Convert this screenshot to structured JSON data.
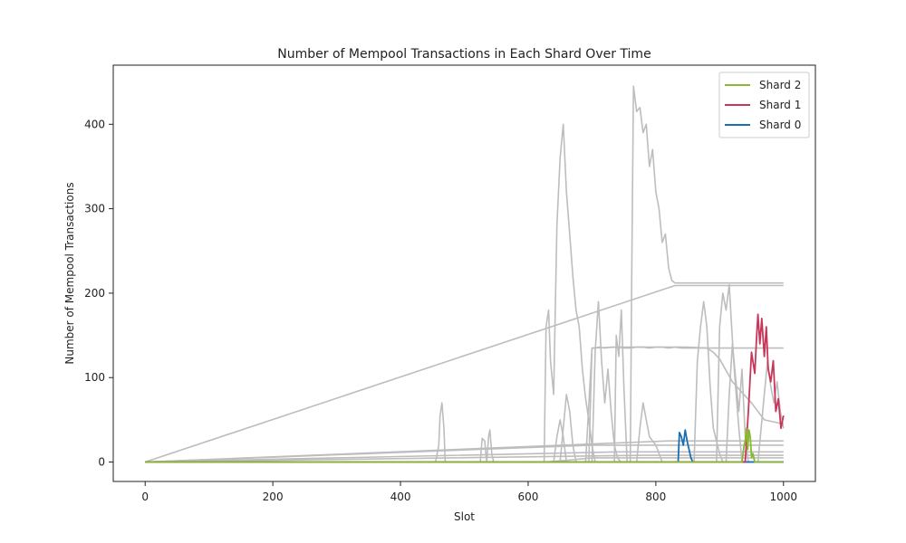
{
  "chart_data": {
    "type": "line",
    "title": "Number of Mempool Transactions in Each Shard Over Time",
    "xlabel": "Slot",
    "ylabel": "Number of Mempool Transactions",
    "xlim": [
      -50,
      1050
    ],
    "ylim": [
      -23,
      470
    ],
    "xticks": [
      0,
      200,
      400,
      600,
      800,
      1000
    ],
    "yticks": [
      0,
      100,
      200,
      300,
      400
    ],
    "grid": false,
    "legend_placement": "top-right",
    "background_series_color": "#bdbdbd",
    "series": [
      {
        "name": "Shard 2",
        "color": "#8ab833",
        "x": [
          0,
          935,
          938,
          940,
          942,
          944,
          946,
          948,
          950,
          952,
          955,
          1000
        ],
        "values": [
          0,
          0,
          18,
          25,
          40,
          15,
          38,
          30,
          5,
          10,
          0,
          0
        ]
      },
      {
        "name": "Shard 1",
        "color": "#c8375a",
        "x": [
          0,
          940,
          945,
          950,
          955,
          958,
          960,
          963,
          966,
          970,
          973,
          976,
          980,
          984,
          988,
          992,
          996,
          1000
        ],
        "values": [
          0,
          0,
          60,
          130,
          105,
          150,
          175,
          140,
          170,
          125,
          160,
          110,
          95,
          120,
          60,
          75,
          40,
          55
        ]
      },
      {
        "name": "Shard 0",
        "color": "#1a6fb0",
        "x": [
          0,
          835,
          837,
          840,
          843,
          846,
          849,
          852,
          855,
          858,
          1000
        ],
        "values": [
          0,
          0,
          35,
          30,
          20,
          38,
          25,
          15,
          5,
          0,
          0
        ]
      }
    ],
    "background_series": [
      {
        "x": [
          0,
          455,
          460,
          462,
          465,
          468,
          470,
          1000
        ],
        "values": [
          0,
          0,
          20,
          55,
          70,
          40,
          0,
          0
        ]
      },
      {
        "x": [
          0,
          525,
          528,
          532,
          535,
          538,
          540,
          543,
          546,
          1000
        ],
        "values": [
          0,
          0,
          28,
          25,
          0,
          30,
          38,
          10,
          0,
          0
        ]
      },
      {
        "x": [
          0,
          625,
          628,
          632,
          635,
          640,
          645,
          650,
          655,
          660,
          665,
          670,
          675,
          680,
          685,
          690,
          695,
          700,
          705,
          1000
        ],
        "values": [
          0,
          0,
          160,
          180,
          120,
          80,
          280,
          360,
          400,
          320,
          270,
          220,
          180,
          160,
          110,
          75,
          50,
          20,
          0,
          0
        ]
      },
      {
        "x": [
          0,
          695,
          700,
          705,
          710,
          720,
          730,
          740,
          750,
          760,
          770,
          780,
          790,
          800,
          810,
          820,
          830,
          840,
          1000
        ],
        "values": [
          0,
          0,
          135,
          135,
          136,
          135,
          136,
          136,
          135,
          135,
          136,
          136,
          135,
          136,
          136,
          135,
          136,
          135,
          135
        ]
      },
      {
        "x": [
          0,
          760,
          762,
          765,
          770,
          775,
          780,
          785,
          790,
          795,
          800,
          805,
          810,
          815,
          820,
          825,
          830,
          1000
        ],
        "values": [
          0,
          0,
          200,
          445,
          415,
          420,
          390,
          400,
          350,
          370,
          320,
          300,
          260,
          270,
          230,
          215,
          212,
          212
        ]
      },
      {
        "x": [
          0,
          830,
          1000
        ],
        "values": [
          0,
          209,
          209
        ]
      },
      {
        "x": [
          0,
          690,
          700,
          740,
          800,
          850,
          880,
          890,
          900,
          920,
          950,
          970,
          1000
        ],
        "values": [
          0,
          0,
          135,
          136,
          136,
          136,
          135,
          130,
          122,
          95,
          70,
          50,
          45
        ]
      },
      {
        "x": [
          0,
          700,
          705,
          710,
          715,
          720,
          725,
          730,
          735,
          740,
          745,
          1000
        ],
        "values": [
          0,
          0,
          130,
          190,
          120,
          70,
          110,
          60,
          20,
          5,
          0,
          0
        ]
      },
      {
        "x": [
          0,
          735,
          738,
          742,
          746,
          750,
          755,
          1000
        ],
        "values": [
          0,
          0,
          150,
          125,
          180,
          90,
          0,
          0
        ]
      },
      {
        "x": [
          0,
          860,
          865,
          870,
          875,
          880,
          885,
          890,
          900,
          905,
          1000
        ],
        "values": [
          0,
          0,
          120,
          160,
          190,
          160,
          90,
          40,
          10,
          0,
          0
        ]
      },
      {
        "x": [
          0,
          895,
          900,
          905,
          910,
          915,
          918,
          922,
          926,
          930,
          935,
          1000
        ],
        "values": [
          0,
          0,
          160,
          200,
          180,
          210,
          170,
          120,
          80,
          40,
          0,
          0
        ]
      },
      {
        "x": [
          0,
          910,
          915,
          920,
          925,
          930,
          935,
          940,
          945,
          1000
        ],
        "values": [
          0,
          0,
          80,
          140,
          100,
          60,
          110,
          30,
          0,
          0
        ]
      },
      {
        "x": [
          0,
          960,
          965,
          970,
          975,
          980,
          985,
          990,
          995,
          1000
        ],
        "values": [
          0,
          0,
          40,
          80,
          120,
          90,
          70,
          95,
          60,
          40
        ]
      },
      {
        "x": [
          0,
          620,
          625,
          660,
          700,
          1000
        ],
        "values": [
          0,
          0,
          0,
          2,
          5,
          5
        ]
      },
      {
        "x": [
          0,
          700,
          1000
        ],
        "values": [
          0,
          20,
          20
        ]
      },
      {
        "x": [
          0,
          740,
          1000
        ],
        "values": [
          0,
          12,
          12
        ]
      },
      {
        "x": [
          0,
          780,
          1000
        ],
        "values": [
          0,
          8,
          8
        ]
      },
      {
        "x": [
          0,
          820,
          1000
        ],
        "values": [
          0,
          25,
          25
        ]
      },
      {
        "x": [
          0,
          650,
          655,
          660,
          665,
          670,
          675,
          680,
          1000
        ],
        "values": [
          0,
          0,
          40,
          80,
          60,
          20,
          0,
          0,
          0
        ]
      },
      {
        "x": [
          0,
          640,
          645,
          650,
          655,
          660,
          1000
        ],
        "values": [
          0,
          0,
          30,
          50,
          30,
          0,
          0
        ]
      },
      {
        "x": [
          0,
          770,
          775,
          780,
          790,
          800,
          810,
          1000
        ],
        "values": [
          0,
          0,
          40,
          70,
          30,
          20,
          0,
          0
        ]
      }
    ]
  }
}
